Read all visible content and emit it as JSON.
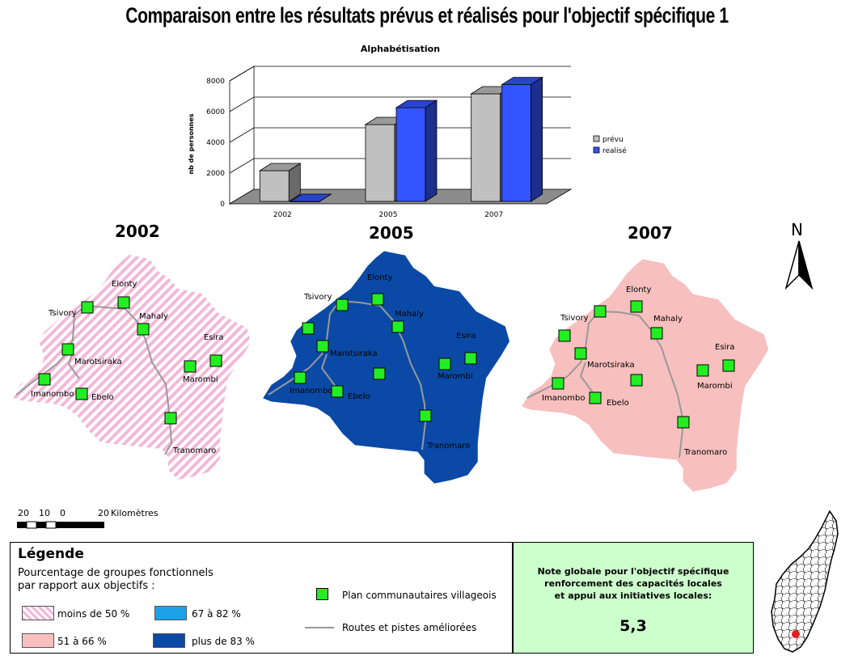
{
  "title": "Comparaison entre les résultats  prévus et réalisés pour l'objectif spécifique 1",
  "chart_data": {
    "type": "bar",
    "title": "Alphabétisation",
    "ylabel": "nb de personnes",
    "xlabel": "",
    "categories": [
      "2002",
      "2005",
      "2007"
    ],
    "yticks": [
      0,
      2000,
      4000,
      6000,
      8000
    ],
    "ylim": [
      0,
      8000
    ],
    "series": [
      {
        "name": "prévu",
        "color": "#c0c0c0",
        "values": [
          2000,
          5000,
          7000
        ]
      },
      {
        "name": "realisé",
        "color": "#3355ff",
        "values": [
          0,
          6100,
          7600
        ]
      }
    ],
    "legend_position": "right",
    "grid": true
  },
  "maps": [
    {
      "year": "2002",
      "fill": "pink-hatched"
    },
    {
      "year": "2005",
      "fill": "#0a4aa6"
    },
    {
      "year": "2007",
      "fill": "#f8bfbf"
    }
  ],
  "places": {
    "elonty": "Elonty",
    "tsivory": "Tsivory",
    "mahaly": "Mahaly",
    "esira": "Esira",
    "marotsiraka": "Marotsiraka",
    "marombi": "Marombi",
    "imanombo": "Imanombo",
    "ebelo": "Ebelo",
    "tranomaro": "Tranomaro"
  },
  "north_label": "N",
  "scale": {
    "t1": "20",
    "t2": "10",
    "t3": "0",
    "t4": "20",
    "unit": "Kilomètres"
  },
  "legend": {
    "title": "Légende",
    "subtitle_line1": "Pourcentage de groupes fonctionnels",
    "subtitle_line2": "par rapport aux objectifs :",
    "items": [
      {
        "label": "moins de 50 %",
        "color": "pink-hatched"
      },
      {
        "label": "51 à 66 %",
        "color": "#f8bfbf"
      },
      {
        "label": "67 à 82 %",
        "color": "#1aa3e8"
      },
      {
        "label": "plus de 83 %",
        "color": "#0a4aa6"
      }
    ],
    "plan_label": "Plan communautaires villageois",
    "road_label": "Routes et pistes améliorées"
  },
  "note": {
    "line1": "Note globale pour l'objectif spécifique",
    "line2": "renforcement des capacités locales",
    "line3": "et appui aux initiatives locales:",
    "value": "5,3"
  }
}
